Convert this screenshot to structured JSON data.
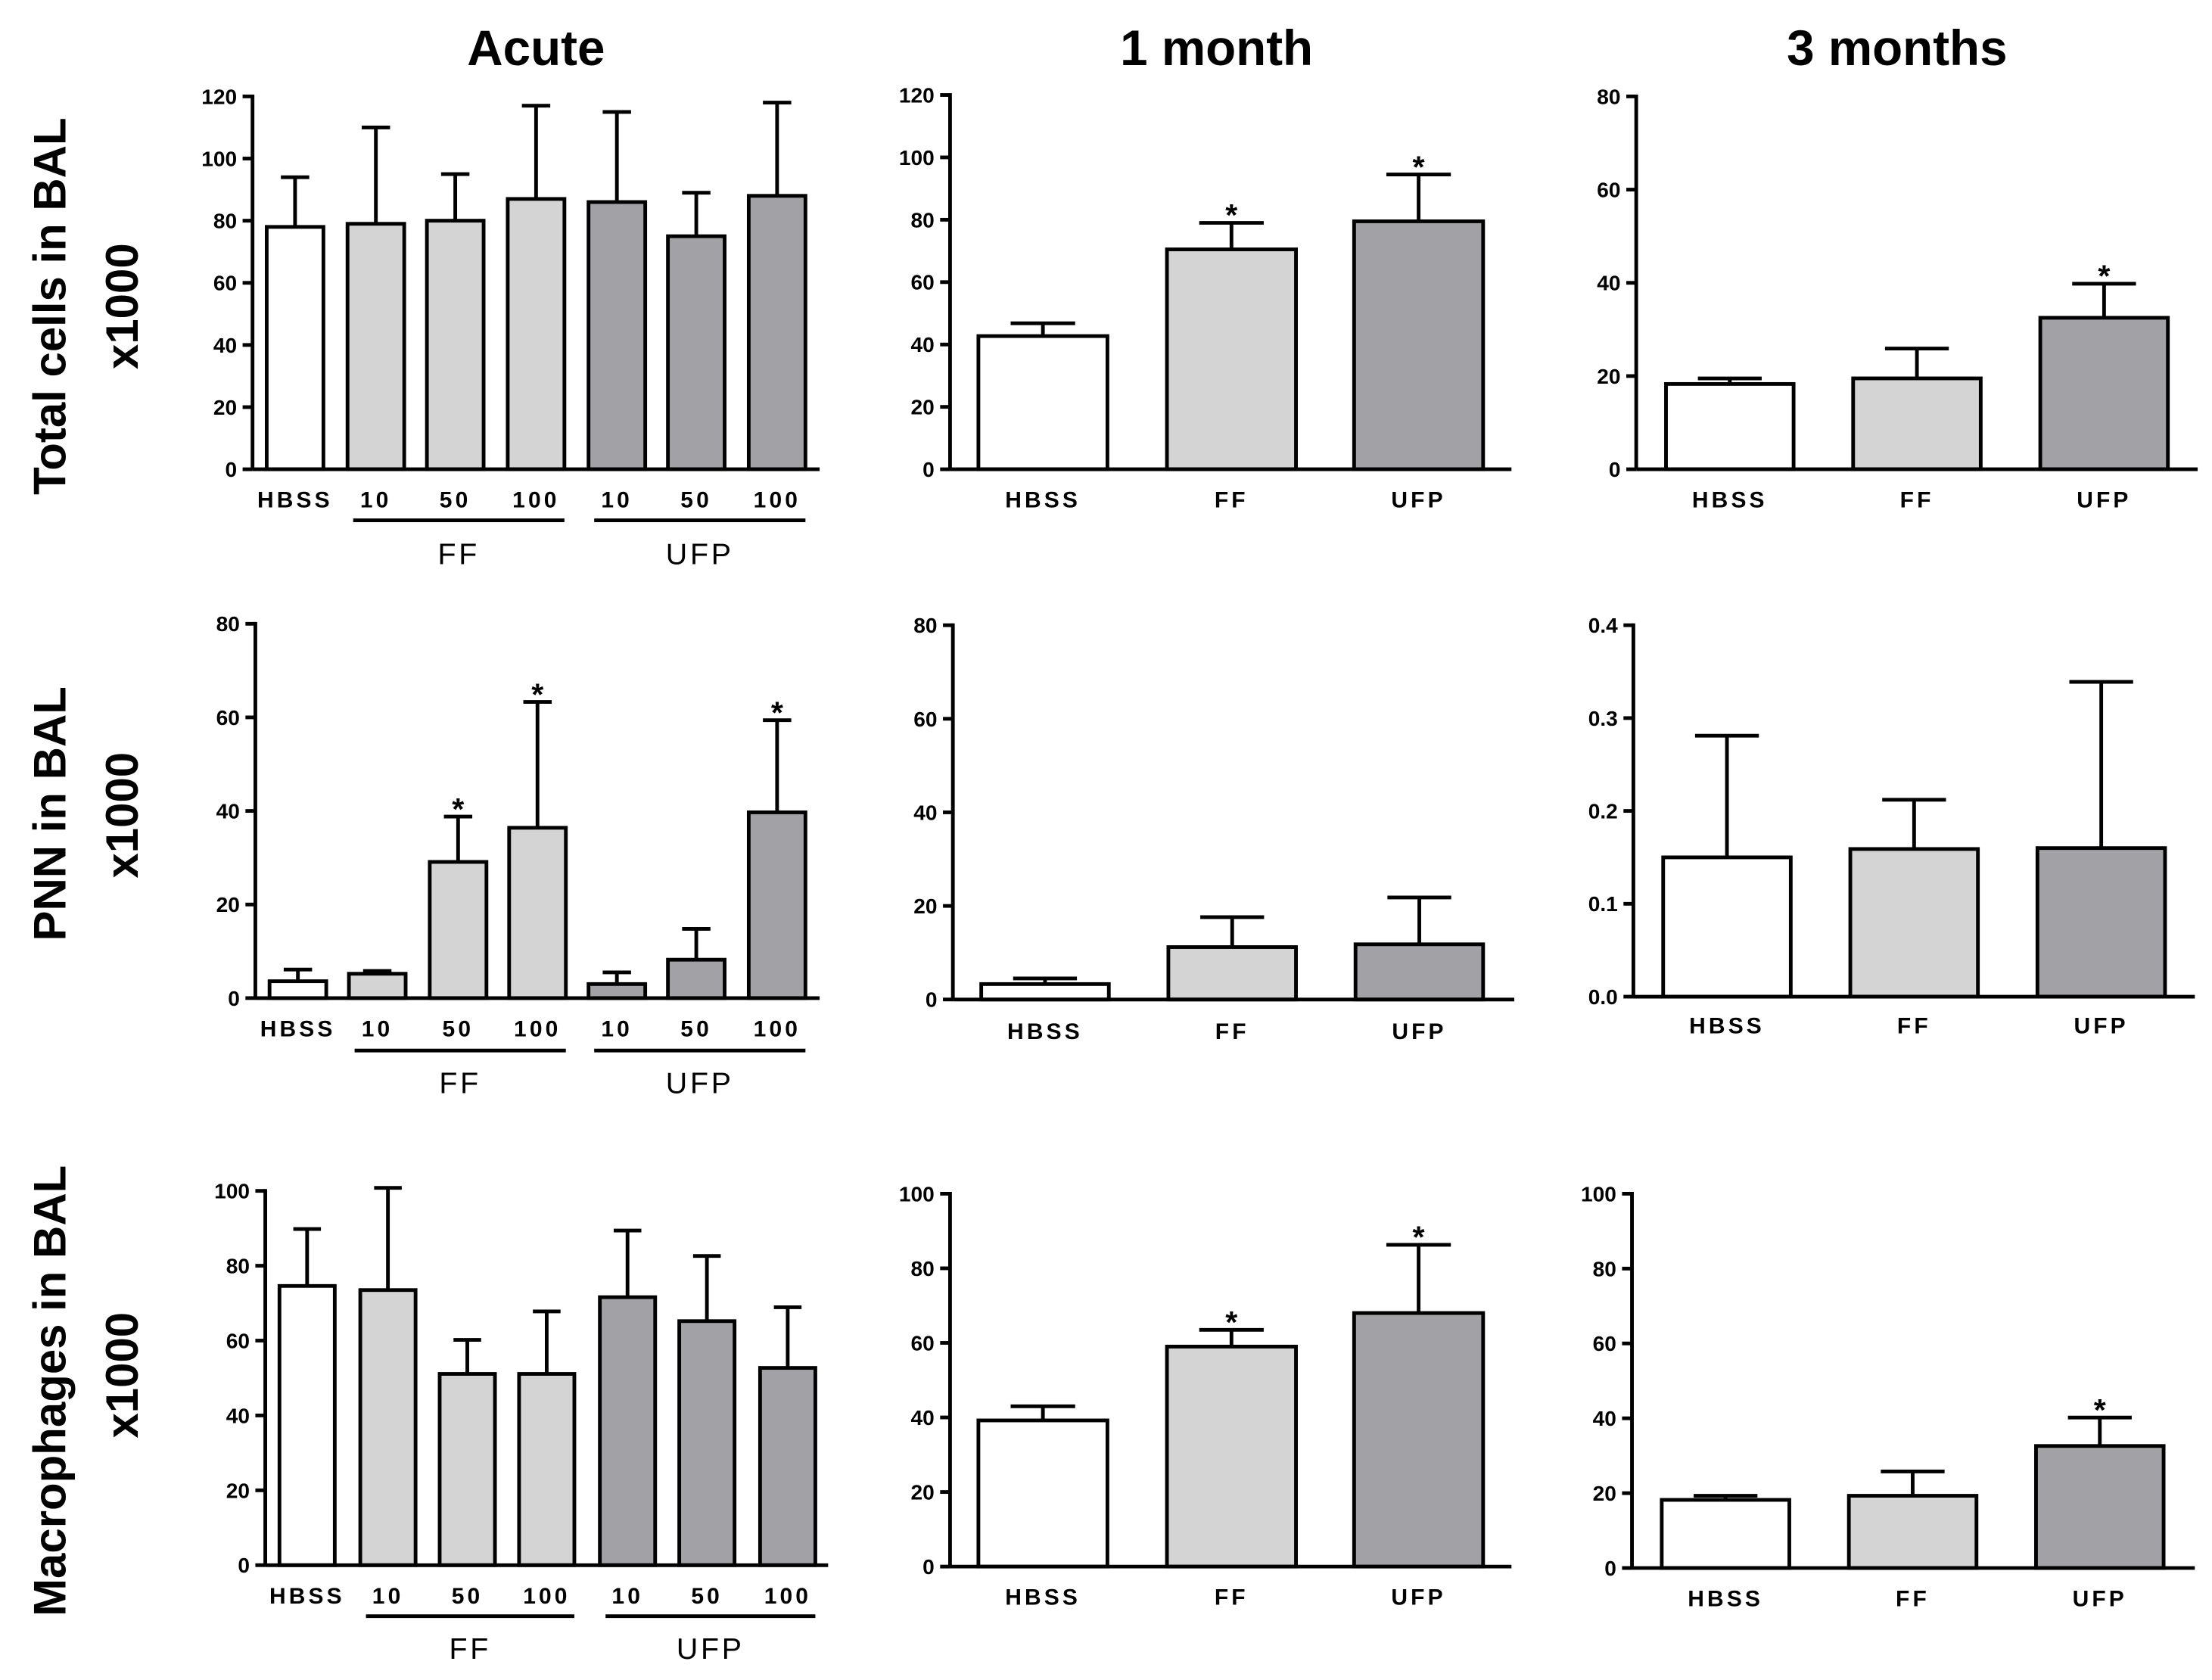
{
  "column_titles": [
    "Acute",
    "1 month",
    "3 months"
  ],
  "row_labels": [
    {
      "line1": "Total cells in BAL",
      "line2": "x1000"
    },
    {
      "line1": "PNN in BAL",
      "line2": "x1000"
    },
    {
      "line1": "Macrophages in BAL",
      "line2": "x1000"
    }
  ],
  "chart_data": [
    {
      "type": "bar",
      "categories": [
        "HBSS",
        "10",
        "50",
        "100",
        "10",
        "50",
        "100"
      ],
      "groups": [
        {
          "label": "FF",
          "first": 1,
          "last": 3
        },
        {
          "label": "UFP",
          "first": 4,
          "last": 6
        }
      ],
      "values": [
        78,
        79,
        80,
        87,
        86,
        75,
        88
      ],
      "error_top": [
        94,
        110,
        95,
        117,
        115,
        89,
        118
      ],
      "annotations": [
        null,
        null,
        null,
        null,
        null,
        null,
        null
      ],
      "fills": [
        "#ffffff",
        "#d4d4d4",
        "#d4d4d4",
        "#d4d4d4",
        "#a2a2a6",
        "#a2a2a6",
        "#a2a2a6"
      ],
      "ylim": [
        0,
        120
      ],
      "yticks": [
        0,
        20,
        40,
        60,
        80,
        100,
        120
      ],
      "ytick_labels": [
        "0",
        "20",
        "40",
        "60",
        "80",
        "100",
        "120"
      ]
    },
    {
      "type": "bar",
      "categories": [
        "HBSS",
        "FF",
        "UFP"
      ],
      "values": [
        42.7,
        70.5,
        79.5
      ],
      "error_top": [
        46.8,
        79,
        94.5
      ],
      "annotations": [
        null,
        "*",
        "*"
      ],
      "fills": [
        "#ffffff",
        "#d4d4d4",
        "#a2a2a6"
      ],
      "ylim": [
        0,
        120
      ],
      "yticks": [
        0,
        20,
        40,
        60,
        80,
        100,
        120
      ],
      "ytick_labels": [
        "0",
        "20",
        "40",
        "60",
        "80",
        "100",
        "120"
      ]
    },
    {
      "type": "bar",
      "categories": [
        "HBSS",
        "FF",
        "UFP"
      ],
      "values": [
        18.3,
        19.5,
        32.5
      ],
      "error_top": [
        19.5,
        25.9,
        39.8
      ],
      "annotations": [
        null,
        null,
        "*"
      ],
      "fills": [
        "#ffffff",
        "#d4d4d4",
        "#a2a2a6"
      ],
      "ylim": [
        0,
        80
      ],
      "yticks": [
        0,
        20,
        40,
        60,
        80
      ],
      "ytick_labels": [
        "0",
        "20",
        "40",
        "60",
        "80"
      ]
    },
    {
      "type": "bar",
      "categories": [
        "HBSS",
        "10",
        "50",
        "100",
        "10",
        "50",
        "100"
      ],
      "groups": [
        {
          "label": "FF",
          "first": 1,
          "last": 3
        },
        {
          "label": "UFP",
          "first": 4,
          "last": 6
        }
      ],
      "values": [
        3.6,
        5.2,
        29.1,
        36.4,
        3,
        8.2,
        39.7
      ],
      "error_top": [
        6.1,
        5.8,
        38.8,
        63.3,
        5.5,
        14.8,
        59.4
      ],
      "annotations": [
        null,
        null,
        "*",
        "*",
        null,
        null,
        "*"
      ],
      "fills": [
        "#ffffff",
        "#d4d4d4",
        "#d4d4d4",
        "#d4d4d4",
        "#a2a2a6",
        "#a2a2a6",
        "#a2a2a6"
      ],
      "ylim": [
        0,
        80
      ],
      "yticks": [
        0,
        20,
        40,
        60,
        80
      ],
      "ytick_labels": [
        "0",
        "20",
        "40",
        "60",
        "80"
      ]
    },
    {
      "type": "bar",
      "categories": [
        "HBSS",
        "FF",
        "UFP"
      ],
      "values": [
        3.3,
        11.2,
        11.8
      ],
      "error_top": [
        4.5,
        17.6,
        21.8
      ],
      "annotations": [
        null,
        null,
        null
      ],
      "fills": [
        "#ffffff",
        "#d4d4d4",
        "#a2a2a6"
      ],
      "ylim": [
        0,
        80
      ],
      "yticks": [
        0,
        20,
        40,
        60,
        80
      ],
      "ytick_labels": [
        "0",
        "20",
        "40",
        "60",
        "80"
      ]
    },
    {
      "type": "bar",
      "categories": [
        "HBSS",
        "FF",
        "UFP"
      ],
      "values": [
        0.15,
        0.159,
        0.16
      ],
      "error_top": [
        0.281,
        0.212,
        0.339
      ],
      "annotations": [
        null,
        null,
        null
      ],
      "fills": [
        "#ffffff",
        "#d4d4d4",
        "#a2a2a6"
      ],
      "ylim": [
        0,
        0.4
      ],
      "yticks": [
        0,
        0.1,
        0.2,
        0.3,
        0.4
      ],
      "ytick_labels": [
        "0.0",
        "0.1",
        "0.2",
        "0.3",
        "0.4"
      ]
    },
    {
      "type": "bar",
      "categories": [
        "HBSS",
        "10",
        "50",
        "100",
        "10",
        "50",
        "100"
      ],
      "groups": [
        {
          "label": "FF",
          "first": 1,
          "last": 3
        },
        {
          "label": "UFP",
          "first": 4,
          "last": 6
        }
      ],
      "values": [
        74.6,
        73.5,
        51.1,
        51.1,
        71.6,
        65.2,
        52.7
      ],
      "error_top": [
        89.8,
        100.8,
        60.2,
        67.8,
        89.4,
        82.6,
        68.9
      ],
      "annotations": [
        null,
        null,
        null,
        null,
        null,
        null,
        null
      ],
      "fills": [
        "#ffffff",
        "#d4d4d4",
        "#d4d4d4",
        "#d4d4d4",
        "#a2a2a6",
        "#a2a2a6",
        "#a2a2a6"
      ],
      "ylim": [
        0,
        100
      ],
      "yticks": [
        0,
        20,
        40,
        60,
        80,
        100
      ],
      "ytick_labels": [
        "0",
        "20",
        "40",
        "60",
        "80",
        "100"
      ]
    },
    {
      "type": "bar",
      "categories": [
        "HBSS",
        "FF",
        "UFP"
      ],
      "values": [
        39.2,
        59,
        68
      ],
      "error_top": [
        43,
        63.5,
        86.3
      ],
      "annotations": [
        null,
        "*",
        "*"
      ],
      "fills": [
        "#ffffff",
        "#d4d4d4",
        "#a2a2a6"
      ],
      "ylim": [
        0,
        100
      ],
      "yticks": [
        0,
        20,
        40,
        60,
        80,
        100
      ],
      "ytick_labels": [
        "0",
        "20",
        "40",
        "60",
        "80",
        "100"
      ]
    },
    {
      "type": "bar",
      "categories": [
        "HBSS",
        "FF",
        "UFP"
      ],
      "values": [
        18.2,
        19.3,
        32.6
      ],
      "error_top": [
        19.3,
        25.8,
        40.2
      ],
      "annotations": [
        null,
        null,
        "*"
      ],
      "fills": [
        "#ffffff",
        "#d4d4d4",
        "#a2a2a6"
      ],
      "ylim": [
        0,
        100
      ],
      "yticks": [
        0,
        20,
        40,
        60,
        80,
        100
      ],
      "ytick_labels": [
        "0",
        "20",
        "40",
        "60",
        "80",
        "100"
      ]
    }
  ]
}
